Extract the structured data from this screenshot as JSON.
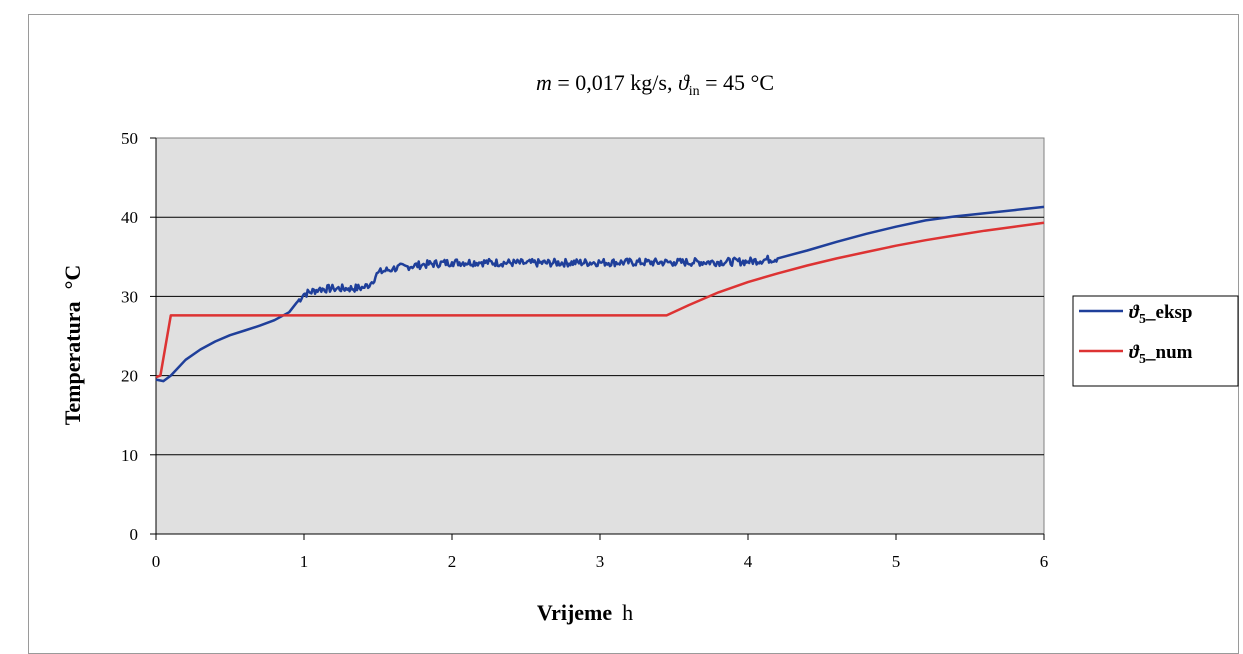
{
  "chart_data": {
    "type": "line",
    "title": {
      "m_symbol": "m",
      "m_value": " = 0,017  kg/s,   ",
      "theta_symbol": "ϑ",
      "theta_sub": "in",
      "theta_value": " = 45  °C"
    },
    "xlabel": {
      "name": "Vrijeme",
      "unit": "h"
    },
    "ylabel": {
      "name": "Temperatura",
      "unit": "°C"
    },
    "xlim": [
      0,
      6
    ],
    "ylim": [
      0,
      50
    ],
    "xticks": [
      "0",
      "1",
      "2",
      "3",
      "4",
      "5",
      "6"
    ],
    "yticks": [
      "0",
      "10",
      "20",
      "30",
      "40",
      "50"
    ],
    "grid": "horizontal",
    "plot_background": "#e0e0e0",
    "legend_placement": "right",
    "series": [
      {
        "name": "ϑ5_eksp",
        "legend": {
          "symbol": "ϑ",
          "sub": "5",
          "text": "_eksp"
        },
        "color": "#1f3f9a",
        "noisy_range": [
          0.95,
          4.2
        ],
        "points": [
          [
            0,
            19.5
          ],
          [
            0.05,
            19.3
          ],
          [
            0.1,
            20.0
          ],
          [
            0.2,
            22.0
          ],
          [
            0.3,
            23.3
          ],
          [
            0.4,
            24.3
          ],
          [
            0.5,
            25.1
          ],
          [
            0.6,
            25.7
          ],
          [
            0.7,
            26.3
          ],
          [
            0.8,
            27.0
          ],
          [
            0.9,
            28.0
          ],
          [
            0.95,
            29.2
          ],
          [
            1.0,
            30.3
          ],
          [
            1.1,
            30.9
          ],
          [
            1.2,
            31.0
          ],
          [
            1.3,
            31.0
          ],
          [
            1.4,
            31.1
          ],
          [
            1.45,
            31.6
          ],
          [
            1.5,
            33.0
          ],
          [
            1.6,
            33.5
          ],
          [
            1.7,
            33.8
          ],
          [
            1.8,
            34.0
          ],
          [
            2.0,
            34.3
          ],
          [
            2.2,
            34.3
          ],
          [
            2.5,
            34.2
          ],
          [
            3.0,
            34.3
          ],
          [
            3.5,
            34.3
          ],
          [
            4.0,
            34.4
          ],
          [
            4.2,
            34.8
          ],
          [
            4.4,
            35.8
          ],
          [
            4.6,
            36.9
          ],
          [
            4.8,
            37.9
          ],
          [
            5.0,
            38.8
          ],
          [
            5.2,
            39.6
          ],
          [
            5.4,
            40.1
          ],
          [
            5.6,
            40.5
          ],
          [
            5.8,
            40.9
          ],
          [
            6.0,
            41.3
          ]
        ]
      },
      {
        "name": "ϑ5_num",
        "legend": {
          "symbol": "ϑ",
          "sub": "5",
          "text": "_num"
        },
        "color": "#dd3333",
        "noisy_range": null,
        "points": [
          [
            0,
            19.8
          ],
          [
            0.03,
            20.0
          ],
          [
            0.1,
            27.6
          ],
          [
            1.0,
            27.6
          ],
          [
            2.0,
            27.6
          ],
          [
            3.0,
            27.6
          ],
          [
            3.45,
            27.6
          ],
          [
            3.6,
            28.9
          ],
          [
            3.8,
            30.5
          ],
          [
            4.0,
            31.8
          ],
          [
            4.2,
            32.9
          ],
          [
            4.4,
            33.9
          ],
          [
            4.6,
            34.8
          ],
          [
            4.8,
            35.6
          ],
          [
            5.0,
            36.4
          ],
          [
            5.2,
            37.1
          ],
          [
            5.4,
            37.7
          ],
          [
            5.6,
            38.3
          ],
          [
            5.8,
            38.8
          ],
          [
            6.0,
            39.3
          ]
        ]
      }
    ]
  }
}
